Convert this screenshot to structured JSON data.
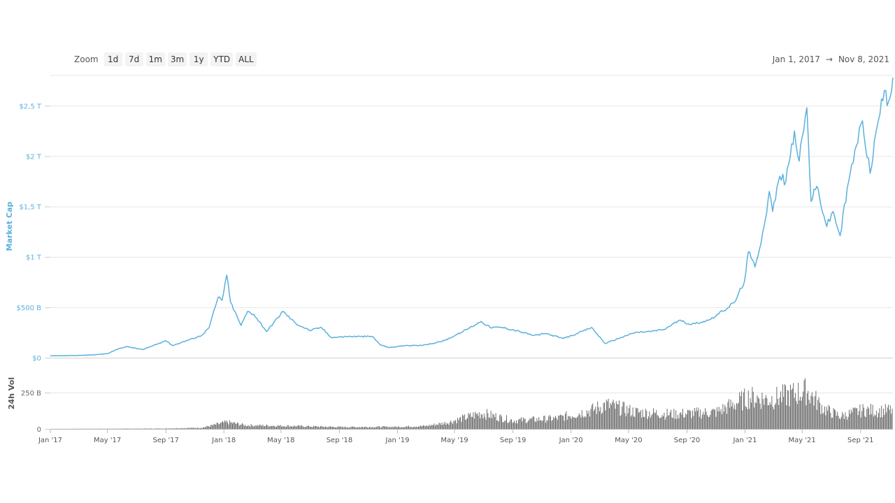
{
  "zoom": {
    "label": "Zoom",
    "buttons": [
      "1d",
      "7d",
      "1m",
      "3m",
      "1y",
      "YTD",
      "ALL"
    ]
  },
  "range": {
    "from": "Jan 1, 2017",
    "arrow": "→",
    "to": "Nov 8, 2021"
  },
  "colors": {
    "line": "#5bb0dc",
    "volume": "#6b6b6b",
    "grid": "#e6e6e6",
    "axis_text": "#5bb0dc"
  },
  "chart_data": [
    {
      "type": "line",
      "ylabel": "Market Cap",
      "ylim": [
        0,
        2.8
      ],
      "y_unit": "T (trillion USD)",
      "yticks": [
        {
          "value": 0,
          "label": "$0"
        },
        {
          "value": 0.5,
          "label": "$500 B"
        },
        {
          "value": 1.0,
          "label": "$1 T"
        },
        {
          "value": 1.5,
          "label": "$1,5 T"
        },
        {
          "value": 2.0,
          "label": "$2 T"
        },
        {
          "value": 2.5,
          "label": "$2,5 T"
        }
      ],
      "grid": true,
      "series": [
        {
          "points": [
            [
              "2017-01-01",
              0.018
            ],
            [
              "2017-02-01",
              0.02
            ],
            [
              "2017-03-01",
              0.023
            ],
            [
              "2017-04-01",
              0.028
            ],
            [
              "2017-05-01",
              0.04
            ],
            [
              "2017-05-25",
              0.09
            ],
            [
              "2017-06-10",
              0.11
            ],
            [
              "2017-07-15",
              0.08
            ],
            [
              "2017-08-05",
              0.12
            ],
            [
              "2017-09-01",
              0.17
            ],
            [
              "2017-09-15",
              0.12
            ],
            [
              "2017-10-15",
              0.17
            ],
            [
              "2017-11-15",
              0.22
            ],
            [
              "2017-12-01",
              0.3
            ],
            [
              "2017-12-20",
              0.6
            ],
            [
              "2017-12-28",
              0.57
            ],
            [
              "2018-01-07",
              0.82
            ],
            [
              "2018-01-15",
              0.55
            ],
            [
              "2018-02-06",
              0.32
            ],
            [
              "2018-02-20",
              0.46
            ],
            [
              "2018-03-05",
              0.43
            ],
            [
              "2018-04-01",
              0.26
            ],
            [
              "2018-05-05",
              0.46
            ],
            [
              "2018-06-01",
              0.34
            ],
            [
              "2018-07-01",
              0.27
            ],
            [
              "2018-07-25",
              0.3
            ],
            [
              "2018-08-15",
              0.2
            ],
            [
              "2018-09-15",
              0.21
            ],
            [
              "2018-10-15",
              0.21
            ],
            [
              "2018-11-10",
              0.21
            ],
            [
              "2018-11-25",
              0.13
            ],
            [
              "2018-12-15",
              0.1
            ],
            [
              "2019-01-15",
              0.12
            ],
            [
              "2019-02-15",
              0.12
            ],
            [
              "2019-03-15",
              0.14
            ],
            [
              "2019-04-10",
              0.17
            ],
            [
              "2019-05-15",
              0.25
            ],
            [
              "2019-06-26",
              0.36
            ],
            [
              "2019-07-15",
              0.3
            ],
            [
              "2019-08-10",
              0.3
            ],
            [
              "2019-09-15",
              0.26
            ],
            [
              "2019-10-15",
              0.22
            ],
            [
              "2019-11-10",
              0.24
            ],
            [
              "2019-12-15",
              0.19
            ],
            [
              "2020-01-15",
              0.24
            ],
            [
              "2020-02-13",
              0.3
            ],
            [
              "2020-03-13",
              0.14
            ],
            [
              "2020-04-15",
              0.2
            ],
            [
              "2020-05-15",
              0.25
            ],
            [
              "2020-06-15",
              0.26
            ],
            [
              "2020-07-15",
              0.28
            ],
            [
              "2020-08-15",
              0.37
            ],
            [
              "2020-09-10",
              0.33
            ],
            [
              "2020-10-15",
              0.37
            ],
            [
              "2020-11-15",
              0.46
            ],
            [
              "2020-12-10",
              0.55
            ],
            [
              "2020-12-31",
              0.76
            ],
            [
              "2021-01-08",
              1.05
            ],
            [
              "2021-01-22",
              0.9
            ],
            [
              "2021-02-10",
              1.3
            ],
            [
              "2021-02-21",
              1.65
            ],
            [
              "2021-02-28",
              1.45
            ],
            [
              "2021-03-15",
              1.8
            ],
            [
              "2021-03-28",
              1.75
            ],
            [
              "2021-04-15",
              2.25
            ],
            [
              "2021-04-25",
              1.95
            ],
            [
              "2021-05-11",
              2.48
            ],
            [
              "2021-05-20",
              1.55
            ],
            [
              "2021-06-01",
              1.7
            ],
            [
              "2021-06-22",
              1.3
            ],
            [
              "2021-07-05",
              1.45
            ],
            [
              "2021-07-20",
              1.21
            ],
            [
              "2021-08-07",
              1.75
            ],
            [
              "2021-08-23",
              2.1
            ],
            [
              "2021-09-05",
              2.35
            ],
            [
              "2021-09-21",
              1.83
            ],
            [
              "2021-10-06",
              2.3
            ],
            [
              "2021-10-21",
              2.65
            ],
            [
              "2021-10-27",
              2.5
            ],
            [
              "2021-11-08",
              2.78
            ]
          ]
        }
      ]
    },
    {
      "type": "bar",
      "ylabel": "24h Vol",
      "ylim": [
        0,
        370
      ],
      "y_unit": "B (billion USD)",
      "yticks": [
        {
          "value": 0,
          "label": "0"
        },
        {
          "value": 250,
          "label": "250 B"
        }
      ],
      "envelope": [
        [
          "2017-01-01",
          1
        ],
        [
          "2017-05-01",
          2
        ],
        [
          "2017-09-01",
          4
        ],
        [
          "2017-11-15",
          12
        ],
        [
          "2018-01-07",
          65
        ],
        [
          "2018-02-15",
          35
        ],
        [
          "2018-05-01",
          30
        ],
        [
          "2018-09-01",
          18
        ],
        [
          "2019-01-01",
          20
        ],
        [
          "2019-03-01",
          28
        ],
        [
          "2019-04-15",
          60
        ],
        [
          "2019-06-26",
          150
        ],
        [
          "2019-09-01",
          80
        ],
        [
          "2019-12-01",
          100
        ],
        [
          "2020-02-15",
          180
        ],
        [
          "2020-03-13",
          230
        ],
        [
          "2020-05-15",
          160
        ],
        [
          "2020-08-01",
          140
        ],
        [
          "2020-11-01",
          160
        ],
        [
          "2021-01-08",
          300
        ],
        [
          "2021-02-20",
          280
        ],
        [
          "2021-05-11",
          360
        ],
        [
          "2021-06-15",
          190
        ],
        [
          "2021-07-20",
          120
        ],
        [
          "2021-09-07",
          180
        ],
        [
          "2021-10-15",
          170
        ],
        [
          "2021-11-08",
          180
        ]
      ]
    }
  ],
  "x_axis": {
    "ticks": [
      {
        "date": "2017-01-01",
        "label": "Jan '17"
      },
      {
        "date": "2017-05-01",
        "label": "May '17"
      },
      {
        "date": "2017-09-01",
        "label": "Sep '17"
      },
      {
        "date": "2018-01-01",
        "label": "Jan '18"
      },
      {
        "date": "2018-05-01",
        "label": "May '18"
      },
      {
        "date": "2018-09-01",
        "label": "Sep '18"
      },
      {
        "date": "2019-01-01",
        "label": "Jan '19"
      },
      {
        "date": "2019-05-01",
        "label": "May '19"
      },
      {
        "date": "2019-09-01",
        "label": "Sep '19"
      },
      {
        "date": "2020-01-01",
        "label": "Jan '20"
      },
      {
        "date": "2020-05-01",
        "label": "May '20"
      },
      {
        "date": "2020-09-01",
        "label": "Sep '20"
      },
      {
        "date": "2021-01-01",
        "label": "Jan '21"
      },
      {
        "date": "2021-05-01",
        "label": "May '21"
      },
      {
        "date": "2021-09-01",
        "label": "Sep '21"
      }
    ],
    "start": "2017-01-01",
    "end": "2021-11-08"
  }
}
